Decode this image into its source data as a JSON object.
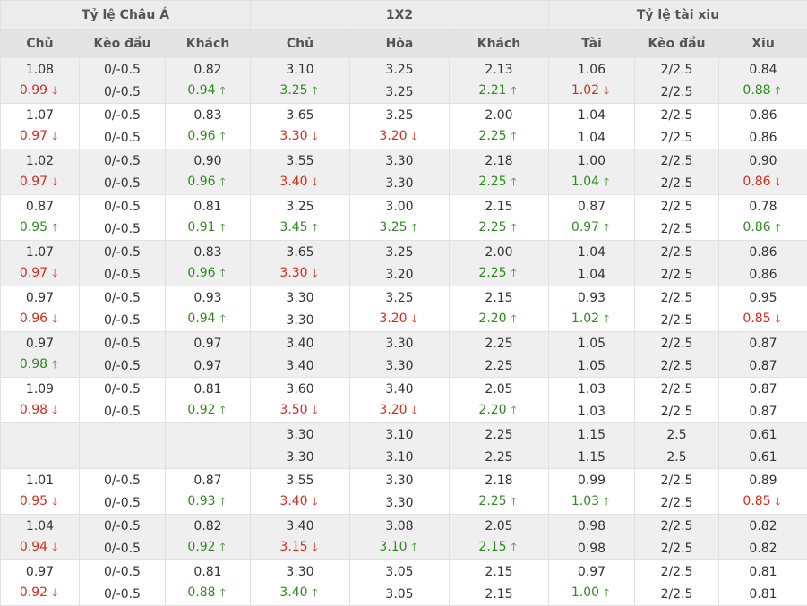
{
  "groups": {
    "asian": "Tỷ lệ Châu Á",
    "x12": "1X2",
    "ou": "Tỷ lệ tài xiu"
  },
  "columns": [
    "Chủ",
    "Kèo đầu",
    "Khách",
    "Chủ",
    "Hòa",
    "Khách",
    "Tài",
    "Kèo đầu",
    "Xiu"
  ],
  "arrows": {
    "up": "🡑",
    "down": "🡓"
  },
  "colors": {
    "up": "#2f8a21",
    "down": "#d72b1e",
    "shade": "#efefef"
  },
  "rows": [
    [
      [
        [
          "1.08",
          ""
        ],
        [
          "0/-0.5",
          ""
        ],
        [
          "0.82",
          ""
        ],
        [
          "3.10",
          ""
        ],
        [
          "3.25",
          ""
        ],
        [
          "2.13",
          ""
        ],
        [
          "1.06",
          ""
        ],
        [
          "2/2.5",
          ""
        ],
        [
          "0.84",
          ""
        ]
      ],
      [
        [
          "0.99",
          "down"
        ],
        [
          "0/-0.5",
          ""
        ],
        [
          "0.94",
          "up"
        ],
        [
          "3.25",
          "up"
        ],
        [
          "3.25",
          ""
        ],
        [
          "2.21",
          "up"
        ],
        [
          "1.02",
          "down"
        ],
        [
          "2/2.5",
          ""
        ],
        [
          "0.88",
          "up"
        ]
      ]
    ],
    [
      [
        [
          "1.07",
          ""
        ],
        [
          "0/-0.5",
          ""
        ],
        [
          "0.83",
          ""
        ],
        [
          "3.65",
          ""
        ],
        [
          "3.25",
          ""
        ],
        [
          "2.00",
          ""
        ],
        [
          "1.04",
          ""
        ],
        [
          "2/2.5",
          ""
        ],
        [
          "0.86",
          ""
        ]
      ],
      [
        [
          "0.97",
          "down"
        ],
        [
          "0/-0.5",
          ""
        ],
        [
          "0.96",
          "up"
        ],
        [
          "3.30",
          "down"
        ],
        [
          "3.20",
          "down"
        ],
        [
          "2.25",
          "up"
        ],
        [
          "1.04",
          ""
        ],
        [
          "2/2.5",
          ""
        ],
        [
          "0.86",
          ""
        ]
      ]
    ],
    [
      [
        [
          "1.02",
          ""
        ],
        [
          "0/-0.5",
          ""
        ],
        [
          "0.90",
          ""
        ],
        [
          "3.55",
          ""
        ],
        [
          "3.30",
          ""
        ],
        [
          "2.18",
          ""
        ],
        [
          "1.00",
          ""
        ],
        [
          "2/2.5",
          ""
        ],
        [
          "0.90",
          ""
        ]
      ],
      [
        [
          "0.97",
          "down"
        ],
        [
          "0/-0.5",
          ""
        ],
        [
          "0.96",
          "up"
        ],
        [
          "3.40",
          "down"
        ],
        [
          "3.30",
          ""
        ],
        [
          "2.25",
          "up"
        ],
        [
          "1.04",
          "up"
        ],
        [
          "2/2.5",
          ""
        ],
        [
          "0.86",
          "down"
        ]
      ]
    ],
    [
      [
        [
          "0.87",
          ""
        ],
        [
          "0/-0.5",
          ""
        ],
        [
          "0.81",
          ""
        ],
        [
          "3.25",
          ""
        ],
        [
          "3.00",
          ""
        ],
        [
          "2.15",
          ""
        ],
        [
          "0.87",
          ""
        ],
        [
          "2/2.5",
          ""
        ],
        [
          "0.78",
          ""
        ]
      ],
      [
        [
          "0.95",
          "up"
        ],
        [
          "0/-0.5",
          ""
        ],
        [
          "0.91",
          "up"
        ],
        [
          "3.45",
          "up"
        ],
        [
          "3.25",
          "up"
        ],
        [
          "2.25",
          "up"
        ],
        [
          "0.97",
          "up"
        ],
        [
          "2/2.5",
          ""
        ],
        [
          "0.86",
          "up"
        ]
      ]
    ],
    [
      [
        [
          "1.07",
          ""
        ],
        [
          "0/-0.5",
          ""
        ],
        [
          "0.83",
          ""
        ],
        [
          "3.65",
          ""
        ],
        [
          "3.25",
          ""
        ],
        [
          "2.00",
          ""
        ],
        [
          "1.04",
          ""
        ],
        [
          "2/2.5",
          ""
        ],
        [
          "0.86",
          ""
        ]
      ],
      [
        [
          "0.97",
          "down"
        ],
        [
          "0/-0.5",
          ""
        ],
        [
          "0.96",
          "up"
        ],
        [
          "3.30",
          "down"
        ],
        [
          "3.20",
          ""
        ],
        [
          "2.25",
          "up"
        ],
        [
          "1.04",
          ""
        ],
        [
          "2/2.5",
          ""
        ],
        [
          "0.86",
          ""
        ]
      ]
    ],
    [
      [
        [
          "0.97",
          ""
        ],
        [
          "0/-0.5",
          ""
        ],
        [
          "0.93",
          ""
        ],
        [
          "3.30",
          ""
        ],
        [
          "3.25",
          ""
        ],
        [
          "2.15",
          ""
        ],
        [
          "0.93",
          ""
        ],
        [
          "2/2.5",
          ""
        ],
        [
          "0.95",
          ""
        ]
      ],
      [
        [
          "0.96",
          "down"
        ],
        [
          "0/-0.5",
          ""
        ],
        [
          "0.94",
          "up"
        ],
        [
          "3.30",
          ""
        ],
        [
          "3.20",
          "down"
        ],
        [
          "2.20",
          "up"
        ],
        [
          "1.02",
          "up"
        ],
        [
          "2/2.5",
          ""
        ],
        [
          "0.85",
          "down"
        ]
      ]
    ],
    [
      [
        [
          "0.97",
          ""
        ],
        [
          "0/-0.5",
          ""
        ],
        [
          "0.97",
          ""
        ],
        [
          "3.40",
          ""
        ],
        [
          "3.30",
          ""
        ],
        [
          "2.25",
          ""
        ],
        [
          "1.05",
          ""
        ],
        [
          "2/2.5",
          ""
        ],
        [
          "0.87",
          ""
        ]
      ],
      [
        [
          "0.98",
          "up"
        ],
        [
          "0/-0.5",
          ""
        ],
        [
          "0.97",
          ""
        ],
        [
          "3.40",
          ""
        ],
        [
          "3.30",
          ""
        ],
        [
          "2.25",
          ""
        ],
        [
          "1.05",
          ""
        ],
        [
          "2/2.5",
          ""
        ],
        [
          "0.87",
          ""
        ]
      ]
    ],
    [
      [
        [
          "1.09",
          ""
        ],
        [
          "0/-0.5",
          ""
        ],
        [
          "0.81",
          ""
        ],
        [
          "3.60",
          ""
        ],
        [
          "3.40",
          ""
        ],
        [
          "2.05",
          ""
        ],
        [
          "1.03",
          ""
        ],
        [
          "2/2.5",
          ""
        ],
        [
          "0.87",
          ""
        ]
      ],
      [
        [
          "0.98",
          "down"
        ],
        [
          "0/-0.5",
          ""
        ],
        [
          "0.92",
          "up"
        ],
        [
          "3.50",
          "down"
        ],
        [
          "3.20",
          "down"
        ],
        [
          "2.20",
          "up"
        ],
        [
          "1.03",
          ""
        ],
        [
          "2/2.5",
          ""
        ],
        [
          "0.87",
          ""
        ]
      ]
    ],
    [
      [
        [
          "",
          ""
        ],
        [
          "",
          ""
        ],
        [
          "",
          ""
        ],
        [
          "3.30",
          ""
        ],
        [
          "3.10",
          ""
        ],
        [
          "2.25",
          ""
        ],
        [
          "1.15",
          ""
        ],
        [
          "2.5",
          ""
        ],
        [
          "0.61",
          ""
        ]
      ],
      [
        [
          "",
          ""
        ],
        [
          "",
          ""
        ],
        [
          "",
          ""
        ],
        [
          "3.30",
          ""
        ],
        [
          "3.10",
          ""
        ],
        [
          "2.25",
          ""
        ],
        [
          "1.15",
          ""
        ],
        [
          "2.5",
          ""
        ],
        [
          "0.61",
          ""
        ]
      ]
    ],
    [
      [
        [
          "1.01",
          ""
        ],
        [
          "0/-0.5",
          ""
        ],
        [
          "0.87",
          ""
        ],
        [
          "3.55",
          ""
        ],
        [
          "3.30",
          ""
        ],
        [
          "2.18",
          ""
        ],
        [
          "0.99",
          ""
        ],
        [
          "2/2.5",
          ""
        ],
        [
          "0.89",
          ""
        ]
      ],
      [
        [
          "0.95",
          "down"
        ],
        [
          "0/-0.5",
          ""
        ],
        [
          "0.93",
          "up"
        ],
        [
          "3.40",
          "down"
        ],
        [
          "3.30",
          ""
        ],
        [
          "2.25",
          "up"
        ],
        [
          "1.03",
          "up"
        ],
        [
          "2/2.5",
          ""
        ],
        [
          "0.85",
          "down"
        ]
      ]
    ],
    [
      [
        [
          "1.04",
          ""
        ],
        [
          "0/-0.5",
          ""
        ],
        [
          "0.82",
          ""
        ],
        [
          "3.40",
          ""
        ],
        [
          "3.08",
          ""
        ],
        [
          "2.05",
          ""
        ],
        [
          "0.98",
          ""
        ],
        [
          "2/2.5",
          ""
        ],
        [
          "0.82",
          ""
        ]
      ],
      [
        [
          "0.94",
          "down"
        ],
        [
          "0/-0.5",
          ""
        ],
        [
          "0.92",
          "up"
        ],
        [
          "3.15",
          "down"
        ],
        [
          "3.10",
          "up"
        ],
        [
          "2.15",
          "up"
        ],
        [
          "0.98",
          ""
        ],
        [
          "2/2.5",
          ""
        ],
        [
          "0.82",
          ""
        ]
      ]
    ],
    [
      [
        [
          "0.97",
          ""
        ],
        [
          "0/-0.5",
          ""
        ],
        [
          "0.81",
          ""
        ],
        [
          "3.30",
          ""
        ],
        [
          "3.05",
          ""
        ],
        [
          "2.15",
          ""
        ],
        [
          "0.97",
          ""
        ],
        [
          "2/2.5",
          ""
        ],
        [
          "0.81",
          ""
        ]
      ],
      [
        [
          "0.92",
          "down"
        ],
        [
          "0/-0.5",
          ""
        ],
        [
          "0.88",
          "up"
        ],
        [
          "3.40",
          "up"
        ],
        [
          "3.05",
          ""
        ],
        [
          "2.15",
          ""
        ],
        [
          "1.00",
          "up"
        ],
        [
          "2/2.5",
          ""
        ],
        [
          "0.81",
          ""
        ]
      ]
    ]
  ]
}
